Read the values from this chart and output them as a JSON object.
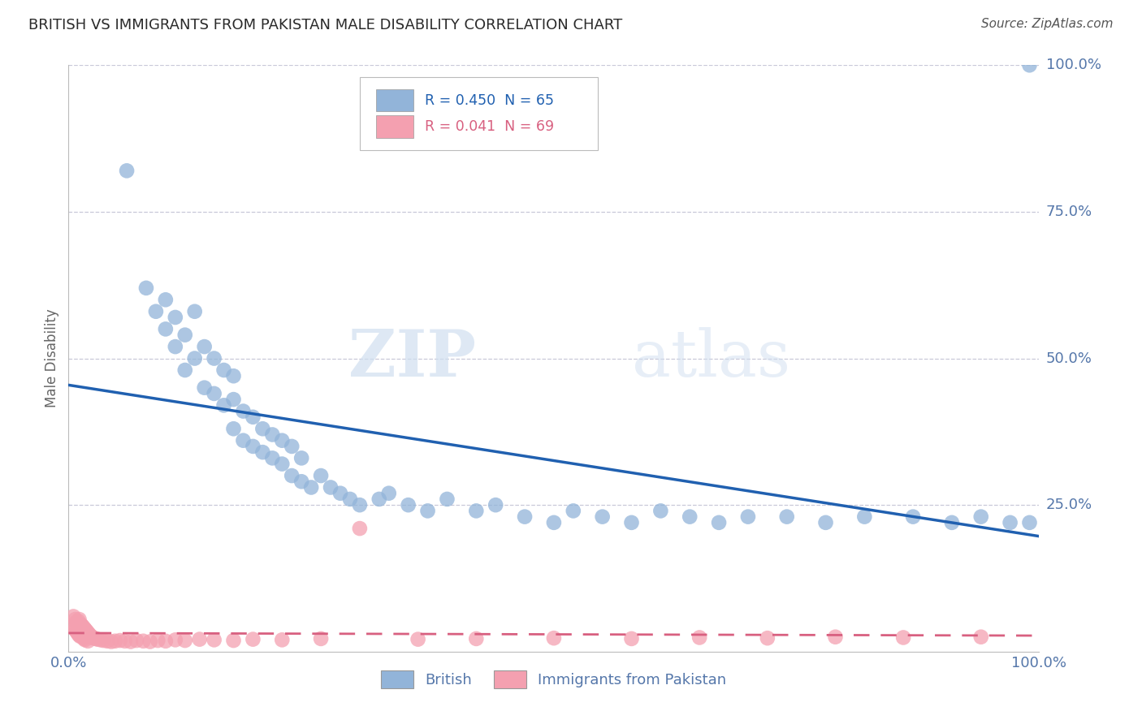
{
  "title": "BRITISH VS IMMIGRANTS FROM PAKISTAN MALE DISABILITY CORRELATION CHART",
  "source": "Source: ZipAtlas.com",
  "ylabel": "Male Disability",
  "xlim": [
    0,
    1.0
  ],
  "ylim": [
    0,
    1.0
  ],
  "ytick_vals": [
    1.0,
    0.75,
    0.5,
    0.25
  ],
  "ytick_labels": [
    "100.0%",
    "75.0%",
    "50.0%",
    "25.0%"
  ],
  "xtick_vals": [
    0.0,
    1.0
  ],
  "xtick_labels": [
    "0.0%",
    "100.0%"
  ],
  "legend_british_R": "R = 0.450",
  "legend_british_N": "N = 65",
  "legend_pakistan_R": "R = 0.041",
  "legend_pakistan_N": "N = 69",
  "british_color": "#92b4d9",
  "pakistan_color": "#f4a0b0",
  "british_line_color": "#2060b0",
  "pakistan_line_color": "#d86080",
  "grid_color": "#c8c8d8",
  "title_color": "#2a2a2a",
  "axis_label_color": "#5577aa",
  "watermark_zip": "ZIP",
  "watermark_atlas": "atlas",
  "british_x": [
    0.06,
    0.08,
    0.09,
    0.1,
    0.1,
    0.11,
    0.11,
    0.12,
    0.12,
    0.13,
    0.13,
    0.14,
    0.14,
    0.15,
    0.15,
    0.16,
    0.16,
    0.17,
    0.17,
    0.17,
    0.18,
    0.18,
    0.19,
    0.19,
    0.2,
    0.2,
    0.21,
    0.21,
    0.22,
    0.22,
    0.23,
    0.23,
    0.24,
    0.24,
    0.25,
    0.26,
    0.27,
    0.28,
    0.29,
    0.3,
    0.32,
    0.33,
    0.35,
    0.37,
    0.39,
    0.42,
    0.44,
    0.47,
    0.5,
    0.52,
    0.55,
    0.58,
    0.61,
    0.64,
    0.67,
    0.7,
    0.74,
    0.78,
    0.82,
    0.87,
    0.91,
    0.94,
    0.97,
    0.99,
    0.99
  ],
  "british_y": [
    0.82,
    0.62,
    0.58,
    0.55,
    0.6,
    0.52,
    0.57,
    0.48,
    0.54,
    0.5,
    0.58,
    0.45,
    0.52,
    0.44,
    0.5,
    0.42,
    0.48,
    0.38,
    0.43,
    0.47,
    0.36,
    0.41,
    0.35,
    0.4,
    0.34,
    0.38,
    0.33,
    0.37,
    0.32,
    0.36,
    0.3,
    0.35,
    0.29,
    0.33,
    0.28,
    0.3,
    0.28,
    0.27,
    0.26,
    0.25,
    0.26,
    0.27,
    0.25,
    0.24,
    0.26,
    0.24,
    0.25,
    0.23,
    0.22,
    0.24,
    0.23,
    0.22,
    0.24,
    0.23,
    0.22,
    0.23,
    0.23,
    0.22,
    0.23,
    0.23,
    0.22,
    0.23,
    0.22,
    0.22,
    1.0
  ],
  "pakistan_x": [
    0.005,
    0.005,
    0.007,
    0.007,
    0.008,
    0.008,
    0.009,
    0.009,
    0.01,
    0.01,
    0.01,
    0.011,
    0.011,
    0.011,
    0.012,
    0.012,
    0.013,
    0.013,
    0.014,
    0.014,
    0.015,
    0.015,
    0.016,
    0.016,
    0.017,
    0.017,
    0.018,
    0.019,
    0.02,
    0.02,
    0.021,
    0.022,
    0.023,
    0.024,
    0.025,
    0.026,
    0.028,
    0.03,
    0.033,
    0.036,
    0.04,
    0.044,
    0.048,
    0.053,
    0.058,
    0.064,
    0.07,
    0.077,
    0.084,
    0.092,
    0.1,
    0.11,
    0.12,
    0.135,
    0.15,
    0.17,
    0.19,
    0.22,
    0.26,
    0.3,
    0.36,
    0.42,
    0.5,
    0.58,
    0.65,
    0.72,
    0.79,
    0.86,
    0.94
  ],
  "pakistan_y": [
    0.06,
    0.04,
    0.055,
    0.038,
    0.05,
    0.035,
    0.048,
    0.033,
    0.045,
    0.03,
    0.052,
    0.042,
    0.028,
    0.055,
    0.04,
    0.026,
    0.046,
    0.03,
    0.044,
    0.026,
    0.042,
    0.024,
    0.04,
    0.022,
    0.038,
    0.02,
    0.036,
    0.034,
    0.032,
    0.018,
    0.03,
    0.028,
    0.026,
    0.025,
    0.024,
    0.023,
    0.022,
    0.021,
    0.02,
    0.019,
    0.018,
    0.017,
    0.018,
    0.019,
    0.018,
    0.017,
    0.019,
    0.018,
    0.017,
    0.019,
    0.018,
    0.02,
    0.019,
    0.021,
    0.02,
    0.019,
    0.021,
    0.02,
    0.022,
    0.21,
    0.021,
    0.022,
    0.023,
    0.022,
    0.024,
    0.023,
    0.025,
    0.024,
    0.025
  ]
}
